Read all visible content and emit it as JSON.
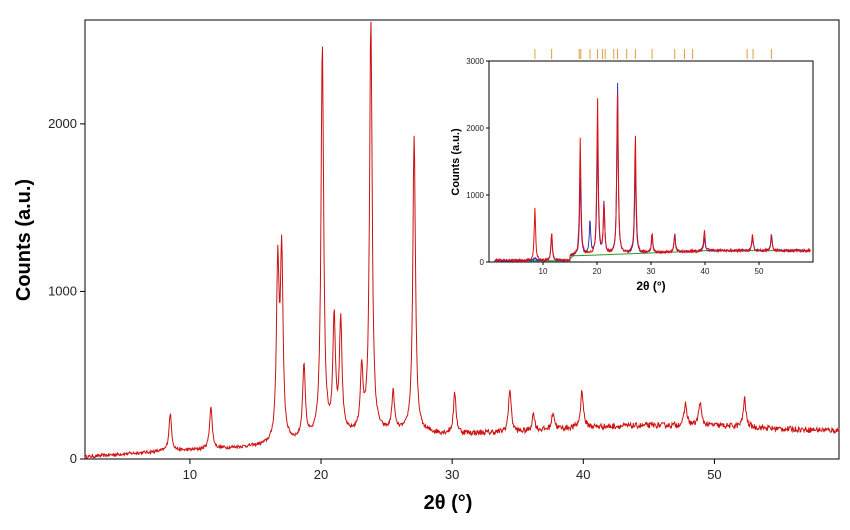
{
  "chart_data": [
    {
      "type": "line",
      "xlabel": "2θ (°)",
      "ylabel": "Counts (a.u.)",
      "xlim": [
        2,
        59.5
      ],
      "ylim": [
        0,
        2620
      ],
      "xticks": [
        10,
        20,
        30,
        40,
        50
      ],
      "xtick_labels": [
        "10",
        "20",
        "30",
        "40",
        "50"
      ],
      "yticks": [
        0,
        1000,
        2000
      ],
      "ytick_labels": [
        "0",
        "1000",
        "2000"
      ],
      "grid": false,
      "legend": "none",
      "series": [
        {
          "color": "#cc1111",
          "background": [
            [
              2,
              12
            ],
            [
              5,
              30
            ],
            [
              8,
              45
            ],
            [
              12,
              60
            ],
            [
              16,
              80
            ],
            [
              20,
              120
            ],
            [
              23,
              150
            ],
            [
              26,
              160
            ],
            [
              30,
              150
            ],
            [
              35,
              160
            ],
            [
              40,
              190
            ],
            [
              45,
              200
            ],
            [
              50,
              200
            ],
            [
              55,
              180
            ],
            [
              59.5,
              170
            ]
          ],
          "peaks": [
            {
              "x": 8.5,
              "y": 270
            },
            {
              "x": 11.6,
              "y": 310
            },
            {
              "x": 16.7,
              "y": 1120
            },
            {
              "x": 17.0,
              "y": 1180
            },
            {
              "x": 18.7,
              "y": 550
            },
            {
              "x": 20.1,
              "y": 2460
            },
            {
              "x": 21.0,
              "y": 810
            },
            {
              "x": 21.5,
              "y": 800
            },
            {
              "x": 23.1,
              "y": 510
            },
            {
              "x": 23.8,
              "y": 2600
            },
            {
              "x": 25.5,
              "y": 390
            },
            {
              "x": 27.1,
              "y": 1930
            },
            {
              "x": 30.2,
              "y": 390
            },
            {
              "x": 34.4,
              "y": 420
            },
            {
              "x": 36.2,
              "y": 270
            },
            {
              "x": 37.7,
              "y": 280
            },
            {
              "x": 39.9,
              "y": 410
            },
            {
              "x": 47.8,
              "y": 330
            },
            {
              "x": 48.9,
              "y": 340
            },
            {
              "x": 52.3,
              "y": 360
            }
          ]
        }
      ]
    },
    {
      "type": "line",
      "inset": true,
      "xlabel": "2θ (°)",
      "ylabel": "Counts (a.u.)",
      "xlim": [
        0,
        60
      ],
      "ylim": [
        0,
        3000
      ],
      "xticks": [
        10,
        20,
        30,
        40,
        50
      ],
      "xtick_labels": [
        "10",
        "20",
        "30",
        "40",
        "50"
      ],
      "yticks": [
        0,
        1000,
        2000,
        3000
      ],
      "ytick_labels": [
        "0",
        "1000",
        "2000",
        "3000"
      ],
      "series": [
        {
          "color": "#dd1111",
          "description_peaks": [
            [
              8.5,
              870
            ],
            [
              11.6,
              520
            ],
            [
              16.9,
              1840
            ],
            [
              20.1,
              2440
            ],
            [
              21.3,
              850
            ],
            [
              23.8,
              2500
            ],
            [
              27.1,
              1900
            ],
            [
              30.2,
              380
            ],
            [
              34.4,
              370
            ],
            [
              39.9,
              400
            ],
            [
              48.8,
              350
            ],
            [
              52.3,
              330
            ]
          ]
        },
        {
          "color": "#3333bb",
          "description_peaks": [
            [
              8.5,
              150
            ],
            [
              11.6,
              500
            ],
            [
              16.9,
              1280
            ],
            [
              18.7,
              620
            ],
            [
              20.1,
              1950
            ],
            [
              21.3,
              880
            ],
            [
              23.8,
              2660
            ],
            [
              27.1,
              1450
            ],
            [
              30.2,
              360
            ],
            [
              34.4,
              380
            ],
            [
              39.9,
              300
            ],
            [
              48.8,
              330
            ],
            [
              52.3,
              350
            ]
          ]
        },
        {
          "color": "#2a9a2a",
          "note": "baseline"
        }
      ],
      "reflection_ticks": [
        8.5,
        11.6,
        16.7,
        17.0,
        18.7,
        20.1,
        21.0,
        21.5,
        23.1,
        23.8,
        25.5,
        27.1,
        30.2,
        34.4,
        36.2,
        37.7,
        47.8,
        48.9,
        52.3
      ]
    }
  ]
}
